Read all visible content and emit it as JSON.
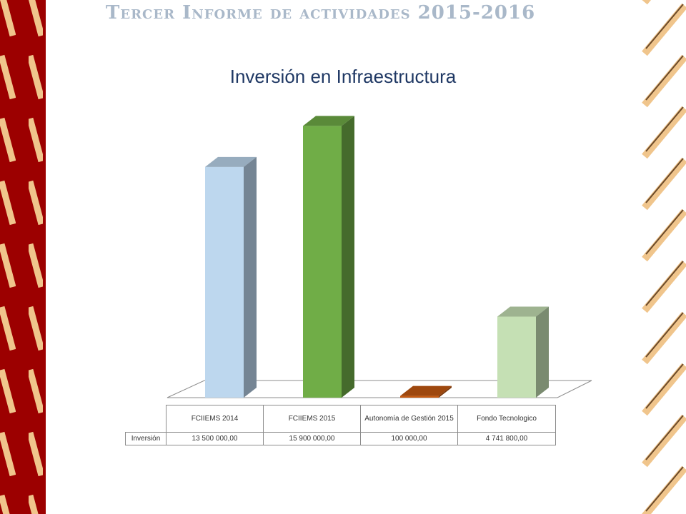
{
  "header": {
    "title": "Tercer Informe de actividades 2015-2016"
  },
  "chart_data": {
    "type": "bar",
    "title": "Inversión en Infraestructura",
    "categories": [
      "FCIIEMS 2014",
      "FCIIEMS 2015",
      "Autonomía de Gestión 2015",
      "Fondo Tecnologico"
    ],
    "series": [
      {
        "name": "Inversión",
        "values": [
          13500000,
          15900000,
          100000,
          4741800
        ]
      }
    ],
    "value_labels": [
      "13 500 000,00",
      "15 900 000,00",
      "100 000,00",
      "4 741 800,00"
    ],
    "bar_colors": [
      "#bdd7ee",
      "#70ad47",
      "#c55a11",
      "#c5e0b4"
    ],
    "ylim": [
      0,
      16000000
    ],
    "legend": "data-table",
    "grid": false
  },
  "colors": {
    "maroon": "#9c0000",
    "tan": "#f0c58c",
    "title_blue": "#1f3864",
    "header_gray": "#a9b8c9"
  }
}
